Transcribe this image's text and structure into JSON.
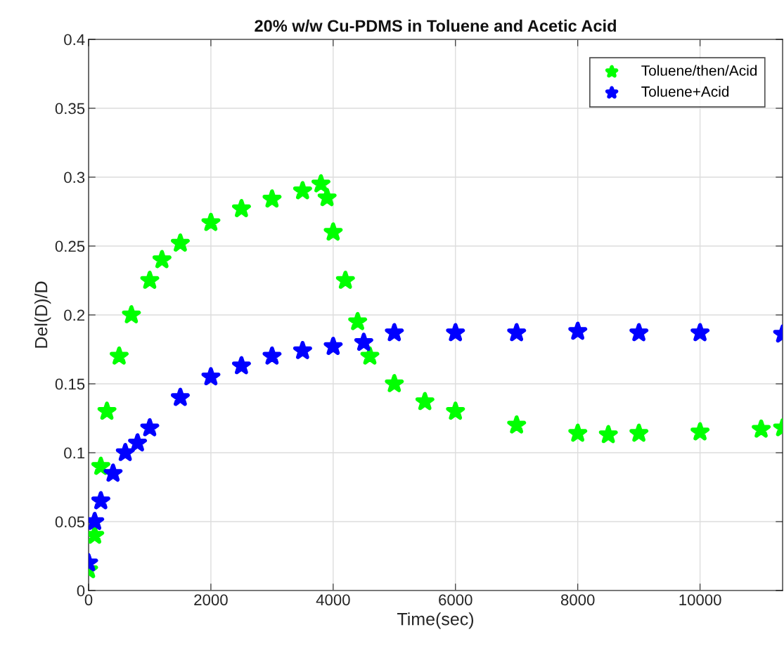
{
  "chart_data": {
    "type": "scatter",
    "title": "20% w/w Cu-PDMS in Toluene and Acetic Acid",
    "xlabel": "Time(sec)",
    "ylabel": "Del(D)/D",
    "xlim": [
      0,
      11350
    ],
    "xticks": [
      0,
      2000,
      4000,
      6000,
      8000,
      10000
    ],
    "ylim": [
      0,
      0.4
    ],
    "yticks": [
      0,
      0.05,
      0.1,
      0.15,
      0.2,
      0.25,
      0.3,
      0.35,
      0.4
    ],
    "grid": true,
    "legend": "top right",
    "marker": "star",
    "series": [
      {
        "name": "Toluene/then/Acid",
        "color": "#00ff00",
        "x": [
          0,
          100,
          200,
          300,
          500,
          700,
          1000,
          1200,
          1500,
          2000,
          2500,
          3000,
          3500,
          3800,
          3900,
          4000,
          4200,
          4400,
          4600,
          5000,
          5500,
          6000,
          7000,
          8000,
          8500,
          9000,
          10000,
          11000,
          11350
        ],
        "values": [
          0.015,
          0.04,
          0.09,
          0.13,
          0.17,
          0.2,
          0.225,
          0.24,
          0.252,
          0.267,
          0.277,
          0.284,
          0.29,
          0.295,
          0.285,
          0.26,
          0.225,
          0.195,
          0.17,
          0.15,
          0.137,
          0.13,
          0.12,
          0.114,
          0.113,
          0.114,
          0.115,
          0.117,
          0.118
        ]
      },
      {
        "name": "Toluene+Acid",
        "color": "#0000ff",
        "x": [
          0,
          100,
          200,
          400,
          600,
          800,
          1000,
          1500,
          2000,
          2500,
          3000,
          3500,
          4000,
          4500,
          5000,
          6000,
          7000,
          8000,
          9000,
          10000,
          11350
        ],
        "values": [
          0.02,
          0.05,
          0.065,
          0.085,
          0.1,
          0.107,
          0.118,
          0.14,
          0.155,
          0.163,
          0.17,
          0.174,
          0.177,
          0.18,
          0.187,
          0.187,
          0.187,
          0.188,
          0.187,
          0.187,
          0.186
        ]
      }
    ]
  }
}
